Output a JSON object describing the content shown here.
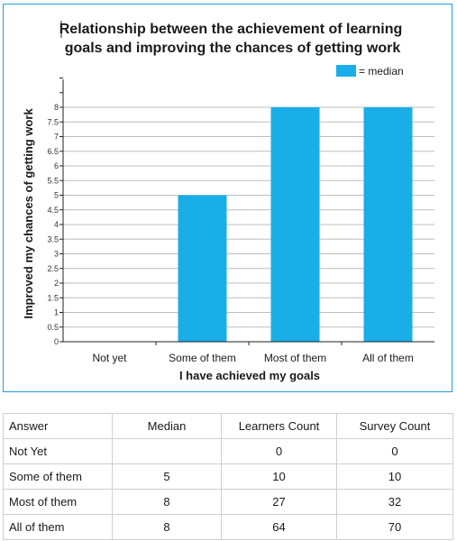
{
  "chart_data": {
    "type": "bar",
    "title_line1": "Relationship between the achievement of learning",
    "title_line2": "goals and improving the chances of getting work",
    "xlabel": "I have achieved my goals",
    "ylabel": "Improved my chances of getting work",
    "legend_label": "= median",
    "legend_position": "top-right",
    "categories": [
      "Not yet",
      "Some of them",
      "Most of them",
      "All of them"
    ],
    "values": [
      null,
      5,
      8,
      8
    ],
    "ylim": [
      0,
      8
    ],
    "yticks": [
      "0",
      "0.5",
      "1",
      "1.5",
      "2",
      "2.5",
      "3",
      "3.5",
      "4",
      "4.5",
      "5",
      "5.5",
      "6",
      "6.5",
      "7",
      "7.5",
      "8"
    ],
    "grid": true,
    "bar_color": "#1aaee8"
  },
  "table": {
    "headers": [
      "Answer",
      "Median",
      "Learners Count",
      "Survey Count"
    ],
    "rows": [
      [
        "Not Yet",
        "",
        "0",
        "0"
      ],
      [
        "Some of them",
        "5",
        "10",
        "10"
      ],
      [
        "Most of them",
        "8",
        "27",
        "32"
      ],
      [
        "All of them",
        "8",
        "64",
        "70"
      ]
    ]
  }
}
